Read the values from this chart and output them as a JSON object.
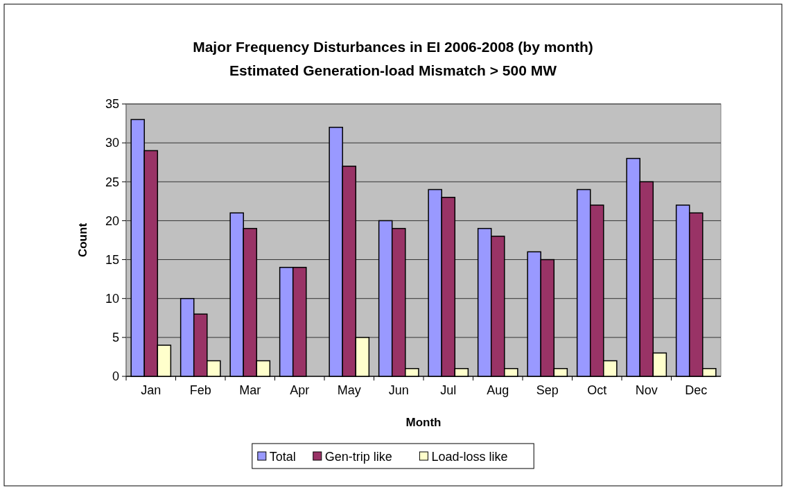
{
  "chart_data": {
    "type": "bar",
    "title": "Major Frequency Disturbances in EI 2006-2008 (by month)",
    "subtitle": "Estimated Generation-load Mismatch > 500 MW",
    "xlabel": "Month",
    "ylabel": "Count",
    "categories": [
      "Jan",
      "Feb",
      "Mar",
      "Apr",
      "May",
      "Jun",
      "Jul",
      "Aug",
      "Sep",
      "Oct",
      "Nov",
      "Dec"
    ],
    "series": [
      {
        "name": "Total",
        "color": "#9999ff",
        "values": [
          33,
          10,
          21,
          14,
          32,
          20,
          24,
          19,
          16,
          24,
          28,
          22
        ]
      },
      {
        "name": "Gen-trip like",
        "color": "#993366",
        "values": [
          29,
          8,
          19,
          14,
          27,
          19,
          23,
          18,
          15,
          22,
          25,
          21
        ]
      },
      {
        "name": "Load-loss like",
        "color": "#ffffcc",
        "values": [
          4,
          2,
          2,
          0,
          5,
          1,
          1,
          1,
          1,
          2,
          3,
          1
        ]
      }
    ],
    "ylim": [
      0,
      35
    ],
    "yticks": [
      0,
      5,
      10,
      15,
      20,
      25,
      30,
      35
    ],
    "grid": "y",
    "legend": "bottom"
  }
}
